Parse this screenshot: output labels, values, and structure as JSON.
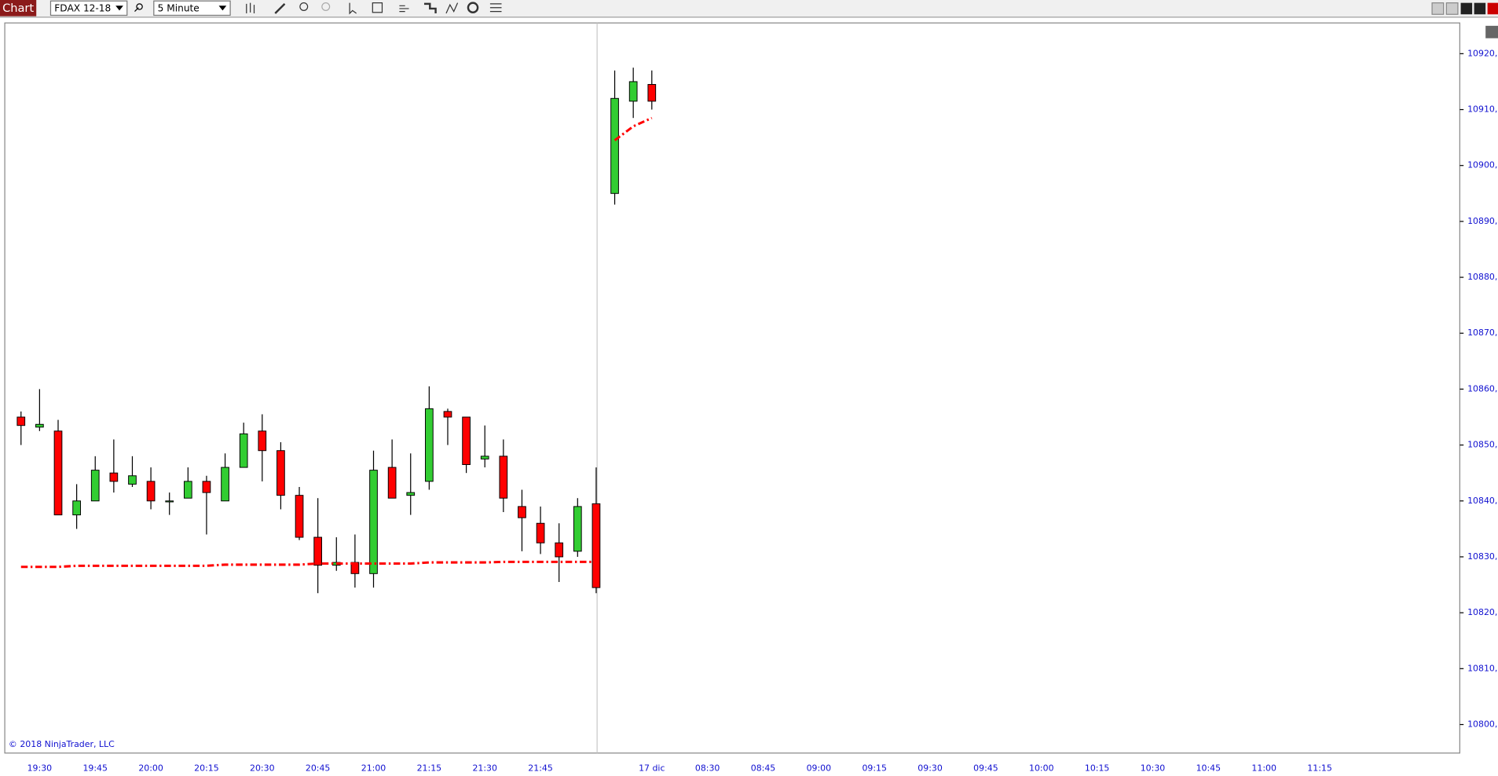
{
  "toolbar": {
    "title": "Chart",
    "instrument": "FDAX 12-18",
    "interval": "5 Minute"
  },
  "copyright": "© 2018 NinjaTrader, LLC",
  "chart_data": {
    "type": "candlestick",
    "up_color": "#32cd32",
    "down_color": "#ff0000",
    "ylim": [
      10794.9,
      10925.5
    ],
    "yticks": [
      {
        "value": 10800,
        "label": "10800,0"
      },
      {
        "value": 10810,
        "label": "10810,0"
      },
      {
        "value": 10820,
        "label": "10820,0"
      },
      {
        "value": 10830,
        "label": "10830,0"
      },
      {
        "value": 10840,
        "label": "10840,0"
      },
      {
        "value": 10850,
        "label": "10850,0"
      },
      {
        "value": 10860,
        "label": "10860,0"
      },
      {
        "value": 10870,
        "label": "10870,0"
      },
      {
        "value": 10880,
        "label": "10880,0"
      },
      {
        "value": 10890,
        "label": "10890,0"
      },
      {
        "value": 10900,
        "label": "10900,0"
      },
      {
        "value": 10910,
        "label": "10910,0"
      },
      {
        "value": 10920,
        "label": "10920,0"
      }
    ],
    "categories": [
      null,
      "19:30",
      null,
      null,
      "19:45",
      null,
      null,
      "20:00",
      null,
      null,
      "20:15",
      null,
      null,
      "20:30",
      null,
      null,
      "20:45",
      null,
      null,
      "21:00",
      null,
      null,
      "21:15",
      null,
      null,
      "21:30",
      null,
      null,
      "21:45",
      null,
      null,
      null,
      null,
      null,
      "17 dic",
      null,
      null,
      "08:30",
      null,
      null,
      "08:45",
      null,
      null,
      "09:00",
      null,
      null,
      "09:15",
      null,
      null,
      "09:30",
      null,
      null,
      "09:45",
      null,
      null,
      "10:00",
      null,
      null,
      "10:15",
      null,
      null,
      "10:30",
      null,
      null,
      "10:45",
      null,
      null,
      "11:00",
      null,
      null,
      "11:15"
    ],
    "open": [
      10855,
      10853.2,
      10852.5,
      10837.5,
      10840,
      10845,
      10843,
      10843.5,
      10840,
      10840.5,
      10843.5,
      10840,
      10846,
      10852.5,
      10849,
      10841,
      10833.5,
      10828.5,
      10829,
      10827,
      10846,
      10841,
      10843.5,
      10856,
      10855,
      10847.5,
      10848,
      10839,
      10836,
      10832.5,
      10831,
      10839.5,
      10895,
      10911.5,
      10914.5,
      null,
      null,
      null,
      null,
      null,
      null,
      null,
      null,
      null,
      null,
      null,
      null,
      null,
      null,
      null,
      null,
      null,
      null,
      null,
      null,
      null,
      null,
      null,
      null,
      null,
      null,
      null,
      null,
      null,
      null,
      null,
      null,
      null,
      null,
      null,
      null
    ],
    "high": [
      10856,
      10860,
      10854.5,
      10843,
      10848,
      10851,
      10848,
      10846,
      10841.5,
      10846,
      10844.5,
      10848.5,
      10854,
      10855.5,
      10850.5,
      10842.5,
      10840.5,
      10833.5,
      10834,
      10849,
      10851,
      10848.5,
      10860.5,
      10856.5,
      10855,
      10853.5,
      10851,
      10842,
      10839,
      10836,
      10840.5,
      10846,
      10917,
      10917.5,
      10917,
      null,
      null,
      null,
      null,
      null,
      null,
      null,
      null,
      null,
      null,
      null,
      null,
      null,
      null,
      null,
      null,
      null,
      null,
      null,
      null,
      null,
      null,
      null,
      null,
      null,
      null,
      null,
      null,
      null,
      null,
      null,
      null,
      null,
      null,
      null,
      null
    ],
    "low": [
      10850,
      10852.5,
      10837.5,
      10835,
      10840,
      10841.5,
      10842.5,
      10838.5,
      10837.5,
      10840.5,
      10834,
      10840,
      10846,
      10843.5,
      10838.5,
      10833,
      10823.5,
      10827.5,
      10824.5,
      10824.5,
      10840.5,
      10837.5,
      10842,
      10850,
      10845,
      10846,
      10838,
      10831,
      10830.5,
      10825.5,
      10830,
      10823.5,
      10893,
      10908.5,
      10910,
      null,
      null,
      null,
      null,
      null,
      null,
      null,
      null,
      null,
      null,
      null,
      null,
      null,
      null,
      null,
      null,
      null,
      null,
      null,
      null,
      null,
      null,
      null,
      null,
      null,
      null,
      null,
      null,
      null,
      null,
      null,
      null,
      null,
      null,
      null,
      null
    ],
    "close": [
      10853.5,
      10853.7,
      10837.5,
      10840,
      10845.5,
      10843.5,
      10844.5,
      10840,
      10840,
      10843.5,
      10841.5,
      10846,
      10852,
      10849,
      10841,
      10833.5,
      10828.5,
      10829,
      10827,
      10845.5,
      10840.5,
      10841.5,
      10856.5,
      10855,
      10846.5,
      10848,
      10840.5,
      10837,
      10832.5,
      10830,
      10839,
      10824.5,
      10912,
      10915,
      10911.5,
      null,
      null,
      null,
      null,
      null,
      null,
      null,
      null,
      null,
      null,
      null,
      null,
      null,
      null,
      null,
      null,
      null,
      null,
      null,
      null,
      null,
      null,
      null,
      null,
      null,
      null,
      null,
      null,
      null,
      null,
      null,
      null,
      null,
      null,
      null,
      null
    ],
    "series": [
      {
        "color": "#ff0000",
        "values": [
          10828.2,
          10828.2,
          10828.2,
          10828.4,
          10828.4,
          10828.4,
          10828.4,
          10828.4,
          10828.4,
          10828.4,
          10828.4,
          10828.6,
          10828.6,
          10828.6,
          10828.6,
          10828.6,
          10828.8,
          10828.8,
          10828.8,
          10828.8,
          10828.8,
          10828.8,
          10829.0,
          10829.0,
          10829.0,
          10829.0,
          10829.1,
          10829.1,
          10829.1,
          10829.1,
          10829.1,
          10829.1,
          null,
          null,
          null,
          null,
          null,
          null,
          null,
          null,
          null,
          null,
          null,
          null,
          null,
          null,
          null,
          null,
          null,
          null,
          null,
          null,
          null,
          null,
          null,
          null,
          null,
          null,
          null,
          null,
          null,
          null,
          null,
          null,
          null,
          null,
          null,
          null,
          null,
          null,
          null
        ]
      },
      {
        "color": "#ff0000",
        "values": [
          null,
          null,
          null,
          null,
          null,
          null,
          null,
          null,
          null,
          null,
          null,
          null,
          null,
          null,
          null,
          null,
          null,
          null,
          null,
          null,
          null,
          null,
          null,
          null,
          null,
          null,
          null,
          null,
          null,
          null,
          null,
          null,
          10904.5,
          10907,
          10908.5,
          null,
          null,
          null,
          null,
          null,
          null,
          null,
          null,
          null,
          null,
          null,
          null,
          null,
          null,
          null,
          null,
          null,
          null,
          null,
          null,
          null,
          null,
          null,
          null,
          null,
          null,
          null,
          null,
          null,
          null,
          null,
          null,
          null,
          null,
          null,
          null
        ]
      }
    ]
  }
}
